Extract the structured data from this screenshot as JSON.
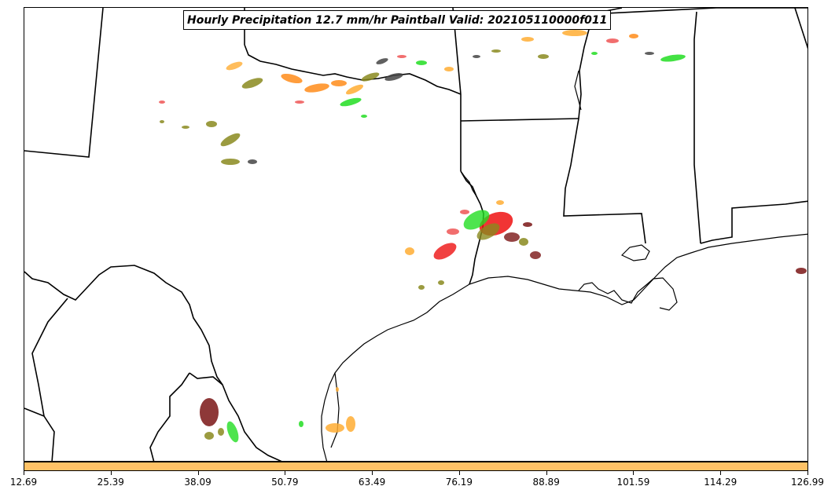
{
  "title": "Hourly Precipitation 12.7 mm/hr Paintball Valid: 202105110000f011",
  "colorbar": {
    "color": "#ffc266",
    "ticks": [
      "12.69",
      "25.39",
      "38.09",
      "50.79",
      "63.49",
      "76.19",
      "88.89",
      "101.59",
      "114.29",
      "126.99"
    ]
  },
  "colors": {
    "orange": "#ff8c1a",
    "light_orange": "#ffad33",
    "green": "#22dd22",
    "olive": "#8a8a1e",
    "red": "#ee1111",
    "dark_red": "#7a1515",
    "dark_gray": "#444444",
    "salmon": "#ee5555"
  }
}
